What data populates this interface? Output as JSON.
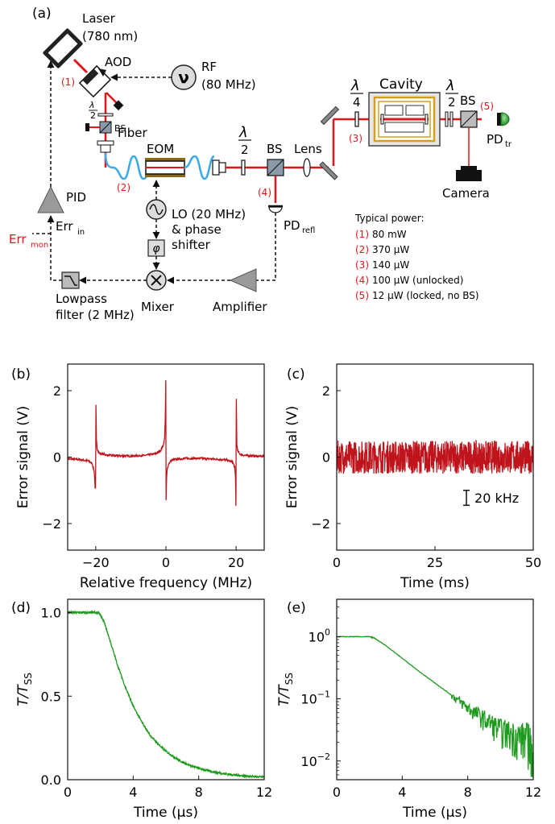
{
  "colors": {
    "laser_beam": "#e0161b",
    "fiber": "#3da8e6",
    "signal_red": "#c0141c",
    "decay_green": "#1e9a1e",
    "pd_green": "#2ea82e",
    "label_red": "#e0161b",
    "dashed": "#111111",
    "gray_fill": "#9a9a9a"
  },
  "panel_a": {
    "panel_label": "(a)",
    "laser_line1": "Laser",
    "laser_line2": "(780 nm)",
    "aod": "AOD",
    "rf_line1": "RF",
    "rf_line2": "(80 MHz)",
    "rf_symbol": "ν",
    "bs": "BS",
    "fiber": "Fiber",
    "eom": "EOM",
    "lens": "Lens",
    "cavity": "Cavity",
    "camera": "Camera",
    "pid": "PID",
    "err_in": "Err",
    "err_in_sub": "in",
    "err_mon": "Err",
    "err_mon_sub": "mon",
    "lo_line1": "LO (20 MHz)",
    "lo_line2": "& phase",
    "lo_line3": "shifter",
    "phase_symbol": "φ",
    "pd_refl": "PD",
    "pd_refl_sub": "refl",
    "pd_tr": "PD",
    "pd_tr_sub": "tr",
    "mixer": "Mixer",
    "amplifier": "Amplifier",
    "lowpass_line1": "Lowpass",
    "lowpass_line2": "filter (2 MHz)",
    "lambda": "λ",
    "half": "2",
    "quarter": "4",
    "markers": [
      "(1)",
      "(2)",
      "(3)",
      "(4)",
      "(5)"
    ],
    "typical_power_title": "Typical power:",
    "typical_power": [
      {
        "marker": "(1)",
        "text": "80 mW"
      },
      {
        "marker": "(2)",
        "text": "370 μW"
      },
      {
        "marker": "(3)",
        "text": "140 μW"
      },
      {
        "marker": "(4)",
        "text": "100 μW (unlocked)"
      },
      {
        "marker": "(5)",
        "text": "12 μW (locked, no BS)"
      }
    ]
  },
  "chart_data": [
    {
      "panel": "(b)",
      "type": "line",
      "xlabel": "Relative frequency (MHz)",
      "ylabel": "Error signal (V)",
      "xlim": [
        -28,
        28
      ],
      "ylim": [
        -2.8,
        2.8
      ],
      "xticks": [
        "−20",
        "0",
        "20"
      ],
      "yticks": [
        "−2",
        "0",
        "2"
      ],
      "series": [
        {
          "color": "#c0141c",
          "x": [
            -28,
            -24,
            -22,
            -21,
            -20.4,
            -20.2,
            -20.05,
            -19.95,
            -19.8,
            -19.6,
            -19,
            -17,
            -14,
            -10,
            -6,
            -3,
            -1.5,
            -0.8,
            -0.4,
            -0.2,
            -0.05,
            0.05,
            0.2,
            0.4,
            0.8,
            1.5,
            3,
            6,
            10,
            14,
            17,
            19,
            19.6,
            19.8,
            19.95,
            20.05,
            20.2,
            20.4,
            21,
            22,
            24,
            28
          ],
          "y": [
            -0.05,
            -0.08,
            -0.12,
            -0.2,
            -0.45,
            -0.9,
            -0.95,
            1.55,
            0.5,
            0.25,
            0.12,
            0.06,
            0.04,
            0.03,
            0.05,
            0.1,
            0.2,
            0.35,
            0.55,
            1.1,
            2.3,
            -1.3,
            -0.6,
            -0.35,
            -0.2,
            -0.1,
            -0.06,
            -0.04,
            -0.04,
            -0.06,
            -0.08,
            -0.15,
            -0.3,
            -0.6,
            -1.45,
            1.75,
            0.4,
            0.2,
            0.1,
            0.06,
            0.04,
            0.02
          ]
        }
      ]
    },
    {
      "panel": "(c)",
      "type": "line",
      "xlabel": "Time (ms)",
      "ylabel": "Error signal (V)",
      "xlim": [
        0,
        50
      ],
      "ylim": [
        -2.8,
        2.8
      ],
      "xticks": [
        "0",
        "25",
        "50"
      ],
      "yticks": [
        "−2",
        "0",
        "2"
      ],
      "noise_band": {
        "center": 0.0,
        "amplitude": 0.5,
        "color": "#c0141c"
      },
      "scale_bar_label": "20 kHz"
    },
    {
      "panel": "(d)",
      "type": "line",
      "xlabel": "Time (μs)",
      "ylabel_main": "T/T",
      "ylabel_sub": "SS",
      "xlim": [
        0,
        12
      ],
      "ylim": [
        0,
        1.08
      ],
      "xticks": [
        "0",
        "4",
        "8",
        "12"
      ],
      "yticks": [
        "0.0",
        "0.5",
        "1.0"
      ],
      "series": [
        {
          "color": "#1e9a1e",
          "x": [
            0,
            0.5,
            1,
            1.5,
            1.9,
            2.2,
            2.5,
            3,
            3.5,
            4,
            4.5,
            5,
            5.5,
            6,
            6.5,
            7,
            7.5,
            8,
            8.5,
            9,
            9.5,
            10,
            10.5,
            11,
            11.5,
            12
          ],
          "y": [
            1.0,
            1.0,
            1.0,
            1.0,
            1.0,
            0.95,
            0.86,
            0.7,
            0.56,
            0.44,
            0.35,
            0.27,
            0.215,
            0.17,
            0.135,
            0.105,
            0.085,
            0.068,
            0.055,
            0.045,
            0.037,
            0.03,
            0.025,
            0.021,
            0.018,
            0.015
          ]
        }
      ]
    },
    {
      "panel": "(e)",
      "type": "line",
      "scale": "log",
      "xlabel": "Time (μs)",
      "ylabel_main": "T/T",
      "ylabel_sub": "SS",
      "xlim": [
        0,
        12
      ],
      "ylim": [
        0.005,
        4
      ],
      "xticks": [
        "0",
        "4",
        "8",
        "12"
      ],
      "yticks": [
        {
          "base": "10",
          "exp": "0",
          "value": 1
        },
        {
          "base": "10",
          "exp": "−1",
          "value": 0.1
        },
        {
          "base": "10",
          "exp": "−2",
          "value": 0.01
        }
      ],
      "series": [
        {
          "color": "#1e9a1e",
          "x": [
            0,
            1,
            2,
            2.3,
            3,
            4,
            5,
            6,
            7,
            8,
            9,
            10,
            11,
            11.8,
            12
          ],
          "y": [
            1.0,
            1.0,
            1.0,
            0.95,
            0.72,
            0.45,
            0.28,
            0.18,
            0.115,
            0.072,
            0.048,
            0.032,
            0.026,
            0.024,
            0.007
          ]
        }
      ]
    }
  ]
}
